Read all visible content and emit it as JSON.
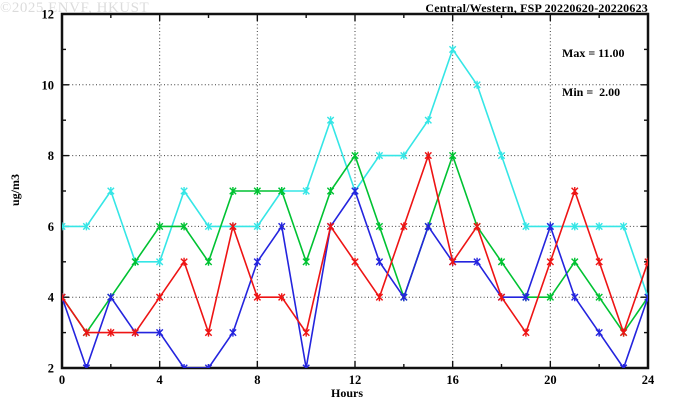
{
  "chart_data": {
    "type": "line",
    "title": "Central/Western, FSP 20220620-20220623",
    "xlabel": "Hours",
    "ylabel": "ug/m3",
    "xlim": [
      0,
      24
    ],
    "ylim": [
      2,
      12
    ],
    "xticks": [
      0,
      4,
      8,
      12,
      16,
      20,
      24
    ],
    "xtick_minor_step": 2,
    "yticks": [
      2,
      4,
      6,
      8,
      10,
      12
    ],
    "ytick_minor_step": 1,
    "grid_x": [
      4,
      8,
      12,
      16,
      20
    ],
    "grid_y": [
      4,
      6,
      8,
      10
    ],
    "grid_on": true,
    "legend_position": "inside-top-right",
    "marker": "star",
    "x": [
      0,
      1,
      2,
      3,
      4,
      5,
      6,
      7,
      8,
      9,
      10,
      11,
      12,
      13,
      14,
      15,
      16,
      17,
      18,
      19,
      20,
      21,
      22,
      23,
      24
    ],
    "series": [
      {
        "name": "cyan",
        "color": "#35E6E6",
        "values": [
          6,
          6,
          7,
          5,
          5,
          7,
          6,
          6,
          6,
          7,
          7,
          9,
          7,
          8,
          8,
          9,
          11,
          10,
          8,
          6,
          6,
          6,
          6,
          6,
          4
        ]
      },
      {
        "name": "green",
        "color": "#00C232",
        "values": [
          4,
          3,
          4,
          5,
          6,
          6,
          5,
          7,
          7,
          7,
          5,
          7,
          8,
          6,
          4,
          6,
          8,
          6,
          5,
          4,
          4,
          5,
          4,
          3,
          4
        ]
      },
      {
        "name": "blue",
        "color": "#2424DE",
        "values": [
          4,
          2,
          4,
          3,
          3,
          2,
          2,
          3,
          5,
          6,
          2,
          6,
          7,
          5,
          4,
          6,
          5,
          5,
          4,
          4,
          6,
          4,
          3,
          2,
          4
        ]
      },
      {
        "name": "red",
        "color": "#EE1414",
        "values": [
          4,
          3,
          3,
          3,
          4,
          5,
          3,
          6,
          4,
          4,
          3,
          6,
          5,
          4,
          6,
          8,
          5,
          6,
          4,
          3,
          5,
          7,
          5,
          3,
          5
        ]
      }
    ],
    "annotation": {
      "max_label": "Max = 11.00",
      "min_label": "Min =  2.00"
    },
    "watermark": "©2025 ENVF, HKUST"
  }
}
